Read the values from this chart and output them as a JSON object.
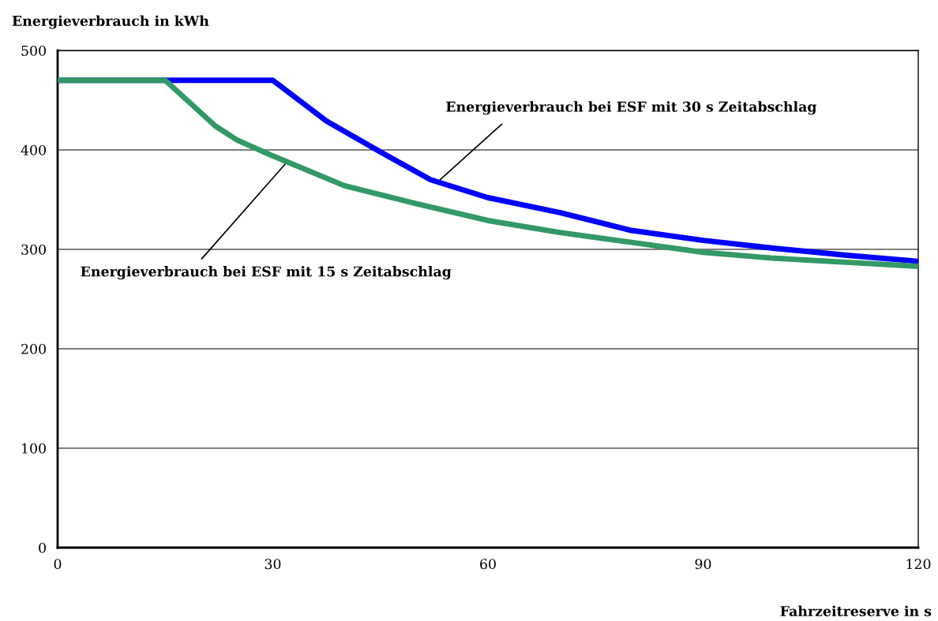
{
  "chart_data": {
    "type": "line",
    "ylabel": "Energieverbrauch in kWh",
    "xlabel": "Fahrzeitreserve in s",
    "xlim": [
      0,
      120
    ],
    "xticks": [
      0,
      30,
      60,
      90,
      120
    ],
    "ylim": [
      0,
      500
    ],
    "yticks": [
      0,
      100,
      200,
      300,
      400,
      500
    ],
    "grid": "y",
    "legend": false,
    "marker": "none",
    "line_style": "solid",
    "series": [
      {
        "color": "#0000ff",
        "x": [
          0,
          30,
          37.5,
          45,
          52,
          60,
          70,
          80,
          90,
          100,
          110,
          120
        ],
        "values": [
          470,
          470,
          429,
          398,
          370,
          352,
          337,
          319,
          309,
          301,
          294,
          288
        ]
      },
      {
        "color": "#339966",
        "x": [
          0,
          15,
          22,
          25,
          30,
          40,
          50,
          60,
          70,
          80,
          90,
          100,
          110,
          120
        ],
        "values": [
          470,
          470,
          424,
          410,
          394,
          364,
          346,
          329,
          317,
          307,
          297,
          291,
          287,
          283
        ]
      }
    ],
    "annotations": [
      {
        "text": "Energieverbrauch bei ESF mit 30 s Zeitabschlag",
        "x": 53,
        "y": 368
      },
      {
        "text": "Energieverbrauch bei ESF mit 15 s Zeitabschlag",
        "x": 32,
        "y": 388
      }
    ]
  }
}
